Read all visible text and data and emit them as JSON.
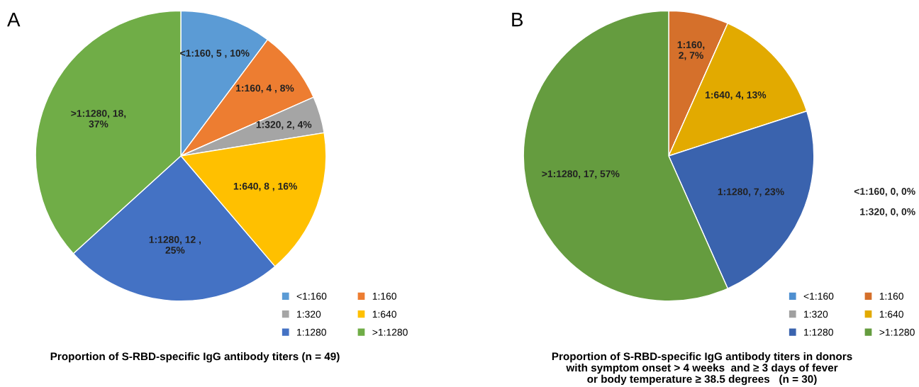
{
  "chart_data": [
    {
      "type": "pie",
      "title": "Proportion of S-RBD-specific IgG antibody titers (n = 49)",
      "categories": [
        "<1:160",
        "1:160",
        "1:320",
        "1:640",
        "1:1280",
        ">1:1280"
      ],
      "values": [
        5,
        4,
        2,
        8,
        12,
        18
      ],
      "colors": [
        "#5b9bd5",
        "#ed7d31",
        "#a5a5a5",
        "#ffc000",
        "#4472c4",
        "#70ad47"
      ],
      "value_labels": [
        "<1:160, 5 , 10%",
        "1:160, 4 , 8%",
        "1:320, 2, 4%",
        "1:640, 8 , 16%",
        "1:1280, 12 ,\n25%",
        ">1:1280, 18,\n37%"
      ],
      "legend": "bottom right",
      "annotations": [
        "A"
      ]
    },
    {
      "type": "pie",
      "title": "Proportion of S-RBD-specific IgG antibody titers in donors\nwith symptom onset > 4 weeks  and ≥ 3 days of fever\nor body temperature ≥ 38.5 degrees   (n = 30)",
      "categories": [
        "<1:160",
        "1:160",
        "1:320",
        "1:640",
        "1:1280",
        ">1:1280"
      ],
      "values": [
        0,
        2,
        0,
        4,
        7,
        17
      ],
      "colors": [
        "#4e8fd0",
        "#d5702b",
        "#a0a0a0",
        "#e2aa00",
        "#3a63ae",
        "#659c3f"
      ],
      "value_labels": [
        "<1:160, 0, 0%",
        "1:160,\n2, 7%",
        "1:320, 0, 0%",
        "1:640, 4, 13%",
        "1:1280, 7, 23%",
        ">1:1280, 17, 57%"
      ],
      "legend": "bottom right",
      "annotations": [
        "B"
      ]
    }
  ]
}
